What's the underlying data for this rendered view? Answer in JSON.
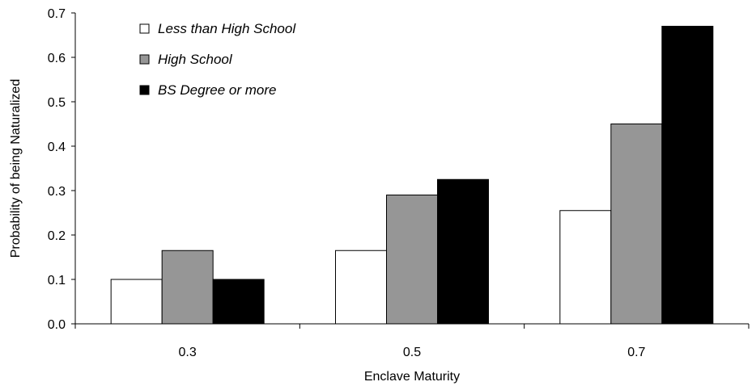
{
  "chart_data": {
    "type": "bar",
    "xlabel": "Enclave Maturity",
    "ylabel": "Probability of being Naturalized",
    "categories": [
      "0.3",
      "0.5",
      "0.7"
    ],
    "ylim": [
      0,
      0.7
    ],
    "yticks": [
      "0.0",
      "0.1",
      "0.2",
      "0.3",
      "0.4",
      "0.5",
      "0.6",
      "0.7"
    ],
    "grid": false,
    "legend_position": "top-left",
    "series": [
      {
        "name": "Less than High School",
        "color": "#ffffff",
        "values": [
          0.1,
          0.165,
          0.255
        ]
      },
      {
        "name": "High School",
        "color": "#969696",
        "values": [
          0.165,
          0.29,
          0.45
        ]
      },
      {
        "name": "BS Degree or more",
        "color": "#000000",
        "values": [
          0.1,
          0.325,
          0.67
        ]
      }
    ]
  }
}
